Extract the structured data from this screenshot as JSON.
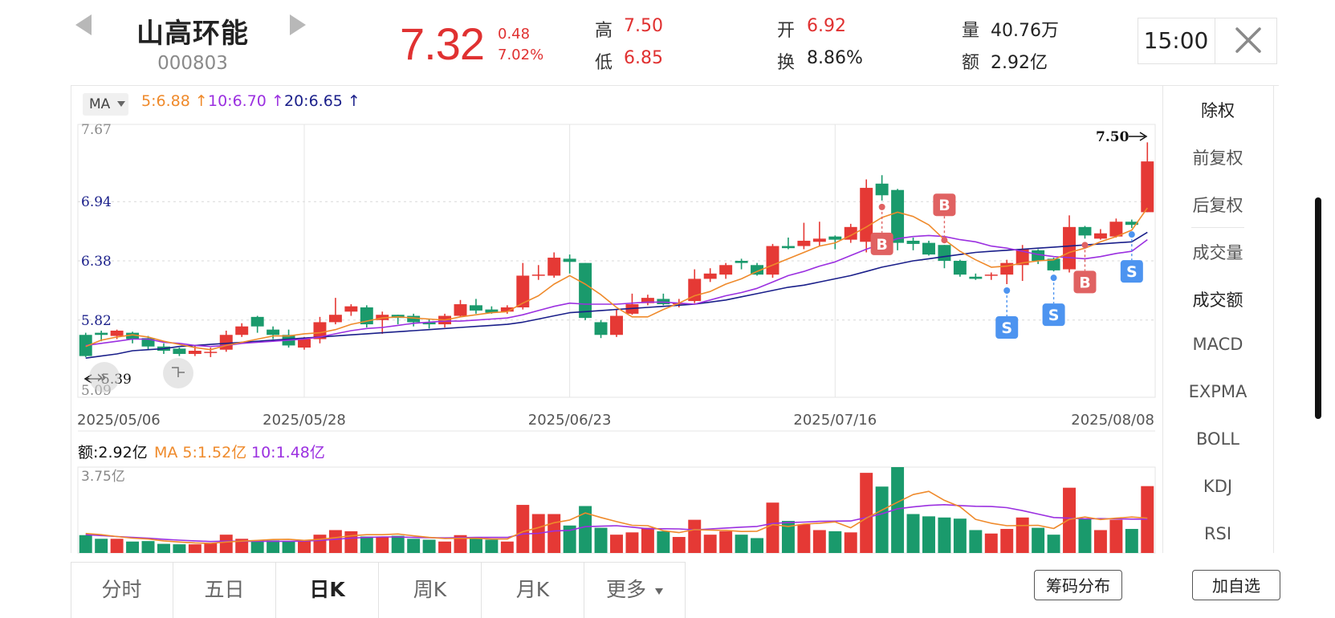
{
  "header": {
    "name": "山高环能",
    "code": "000803",
    "price": "7.32",
    "change_abs": "0.48",
    "change_pct": "7.02%",
    "stats": {
      "high_label": "高",
      "high": "7.50",
      "low_label": "低",
      "low": "6.85",
      "open_label": "开",
      "open": "6.92",
      "turnover_label": "换",
      "turnover": "8.86%",
      "volume_label": "量",
      "volume": "40.76万",
      "amount_label": "额",
      "amount": "2.92亿"
    },
    "time": "15:00"
  },
  "ma_bar": {
    "select_label": "MA",
    "ma5": "5:6.88",
    "ma10": "10:6.70",
    "ma20": "20:6.65"
  },
  "colors": {
    "up": "#e53935",
    "down": "#1a9a6c",
    "ma5": "#ef8a2b",
    "ma10": "#9b30e0",
    "ma20": "#1a1f8a",
    "buy": "#e06262",
    "sell": "#4d94f0"
  },
  "chart_data": [
    {
      "type": "candlestick",
      "y_ticks": [
        "7.67",
        "6.94",
        "6.38",
        "5.82",
        "5.09"
      ],
      "ylim": [
        5.09,
        7.67
      ],
      "x_labels": [
        "2025/05/06",
        "2025/05/28",
        "2025/06/23",
        "2025/07/16",
        "2025/08/08"
      ],
      "x_label_index": [
        0,
        14,
        31,
        48,
        67
      ],
      "high_marker": "7.50",
      "low_marker": "5.39",
      "candles": [
        [
          5.68,
          5.48,
          5.7,
          5.47
        ],
        [
          5.7,
          5.68,
          5.72,
          5.62
        ],
        [
          5.67,
          5.72,
          5.73,
          5.64
        ],
        [
          5.7,
          5.64,
          5.71,
          5.6
        ],
        [
          5.65,
          5.57,
          5.67,
          5.54
        ],
        [
          5.57,
          5.53,
          5.6,
          5.5
        ],
        [
          5.55,
          5.5,
          5.56,
          5.48
        ],
        [
          5.5,
          5.53,
          5.58,
          5.48
        ],
        [
          5.51,
          5.52,
          5.56,
          5.47
        ],
        [
          5.54,
          5.68,
          5.72,
          5.52
        ],
        [
          5.68,
          5.76,
          5.79,
          5.66
        ],
        [
          5.85,
          5.76,
          5.86,
          5.7
        ],
        [
          5.73,
          5.68,
          5.76,
          5.64
        ],
        [
          5.68,
          5.58,
          5.73,
          5.56
        ],
        [
          5.56,
          5.64,
          5.66,
          5.54
        ],
        [
          5.64,
          5.8,
          5.85,
          5.6
        ],
        [
          5.8,
          5.87,
          6.03,
          5.78
        ],
        [
          5.9,
          5.95,
          5.97,
          5.86
        ],
        [
          5.94,
          5.78,
          5.96,
          5.75
        ],
        [
          5.82,
          5.87,
          5.9,
          5.69
        ],
        [
          5.87,
          5.84,
          5.87,
          5.78
        ],
        [
          5.86,
          5.8,
          5.88,
          5.76
        ],
        [
          5.8,
          5.78,
          5.83,
          5.74
        ],
        [
          5.78,
          5.86,
          5.88,
          5.75
        ],
        [
          5.86,
          5.97,
          6.01,
          5.85
        ],
        [
          5.96,
          5.91,
          6.02,
          5.88
        ],
        [
          5.92,
          5.89,
          5.95,
          5.88
        ],
        [
          5.9,
          5.94,
          5.96,
          5.88
        ],
        [
          5.94,
          6.24,
          6.36,
          5.92
        ],
        [
          6.24,
          6.25,
          6.34,
          6.2
        ],
        [
          6.24,
          6.41,
          6.46,
          6.22
        ],
        [
          6.4,
          6.37,
          6.44,
          6.26
        ],
        [
          6.36,
          5.84,
          6.36,
          5.82
        ],
        [
          5.8,
          5.68,
          5.82,
          5.65
        ],
        [
          5.68,
          5.86,
          5.92,
          5.66
        ],
        [
          5.88,
          5.97,
          6.07,
          5.87
        ],
        [
          5.98,
          6.03,
          6.06,
          5.96
        ],
        [
          6.02,
          5.97,
          6.07,
          5.96
        ],
        [
          5.97,
          5.98,
          6.02,
          5.94
        ],
        [
          6.0,
          6.21,
          6.3,
          5.98
        ],
        [
          6.21,
          6.26,
          6.31,
          6.18
        ],
        [
          6.25,
          6.34,
          6.36,
          6.21
        ],
        [
          6.38,
          6.36,
          6.4,
          6.3
        ],
        [
          6.34,
          6.25,
          6.36,
          6.24
        ],
        [
          6.25,
          6.52,
          6.54,
          6.22
        ],
        [
          6.52,
          6.5,
          6.6,
          6.49
        ],
        [
          6.52,
          6.57,
          6.74,
          6.49
        ],
        [
          6.56,
          6.59,
          6.75,
          6.52
        ],
        [
          6.61,
          6.58,
          6.62,
          6.49
        ],
        [
          6.58,
          6.7,
          6.73,
          6.55
        ],
        [
          6.56,
          7.07,
          7.15,
          6.46
        ],
        [
          7.11,
          7.0,
          7.19,
          6.95
        ],
        [
          7.05,
          6.55,
          7.06,
          6.48
        ],
        [
          6.57,
          6.54,
          6.6,
          6.48
        ],
        [
          6.55,
          6.44,
          6.57,
          6.43
        ],
        [
          6.53,
          6.38,
          6.53,
          6.31
        ],
        [
          6.38,
          6.25,
          6.39,
          6.23
        ],
        [
          6.23,
          6.21,
          6.26,
          6.2
        ],
        [
          6.24,
          6.25,
          6.27,
          6.2
        ],
        [
          6.25,
          6.36,
          6.39,
          6.16
        ],
        [
          6.34,
          6.49,
          6.53,
          6.19
        ],
        [
          6.48,
          6.38,
          6.49,
          6.35
        ],
        [
          6.4,
          6.29,
          6.41,
          6.28
        ],
        [
          6.3,
          6.7,
          6.81,
          6.27
        ],
        [
          6.7,
          6.62,
          6.71,
          6.59
        ],
        [
          6.59,
          6.64,
          6.68,
          6.58
        ],
        [
          6.61,
          6.75,
          6.78,
          6.6
        ],
        [
          6.75,
          6.72,
          6.77,
          6.69
        ],
        [
          6.84,
          7.32,
          7.5,
          6.84
        ]
      ],
      "ma5": [
        5.57,
        5.63,
        5.66,
        5.68,
        5.66,
        5.62,
        5.59,
        5.56,
        5.54,
        5.58,
        5.61,
        5.64,
        5.67,
        5.67,
        5.69,
        5.7,
        5.73,
        5.78,
        5.81,
        5.84,
        5.85,
        5.84,
        5.83,
        5.82,
        5.85,
        5.87,
        5.89,
        5.9,
        5.98,
        6.05,
        6.16,
        6.24,
        6.16,
        6.06,
        5.94,
        5.85,
        5.85,
        5.92,
        5.98,
        6.05,
        6.09,
        6.16,
        6.21,
        6.28,
        6.34,
        6.4,
        6.46,
        6.52,
        6.55,
        6.62,
        6.7,
        6.79,
        6.84,
        6.8,
        6.72,
        6.58,
        6.47,
        6.39,
        6.32,
        6.33,
        6.36,
        6.38,
        6.39,
        6.46,
        6.5,
        6.56,
        6.61,
        6.67,
        6.88
      ],
      "ma10": [
        5.58,
        5.6,
        5.62,
        5.64,
        5.64,
        5.61,
        5.6,
        5.58,
        5.57,
        5.58,
        5.6,
        5.61,
        5.62,
        5.63,
        5.64,
        5.66,
        5.69,
        5.72,
        5.74,
        5.75,
        5.77,
        5.79,
        5.8,
        5.81,
        5.81,
        5.82,
        5.83,
        5.84,
        5.87,
        5.91,
        5.95,
        5.98,
        5.97,
        5.97,
        5.97,
        5.98,
        5.99,
        5.99,
        5.98,
        5.97,
        6.01,
        6.05,
        6.08,
        6.12,
        6.18,
        6.24,
        6.28,
        6.33,
        6.37,
        6.43,
        6.49,
        6.54,
        6.59,
        6.61,
        6.62,
        6.61,
        6.58,
        6.56,
        6.52,
        6.5,
        6.47,
        6.44,
        6.42,
        6.41,
        6.4,
        6.42,
        6.45,
        6.47,
        6.58
      ],
      "ma20": [
        5.46,
        5.48,
        5.5,
        5.53,
        5.54,
        5.55,
        5.57,
        5.58,
        5.59,
        5.6,
        5.61,
        5.62,
        5.63,
        5.64,
        5.65,
        5.66,
        5.67,
        5.68,
        5.69,
        5.7,
        5.71,
        5.72,
        5.73,
        5.74,
        5.75,
        5.76,
        5.77,
        5.78,
        5.8,
        5.83,
        5.86,
        5.89,
        5.9,
        5.91,
        5.92,
        5.93,
        5.94,
        5.95,
        5.96,
        5.97,
        5.99,
        6.01,
        6.04,
        6.07,
        6.1,
        6.13,
        6.15,
        6.18,
        6.21,
        6.24,
        6.28,
        6.32,
        6.35,
        6.38,
        6.4,
        6.42,
        6.44,
        6.46,
        6.47,
        6.48,
        6.49,
        6.5,
        6.51,
        6.52,
        6.53,
        6.54,
        6.55,
        6.56,
        6.65
      ],
      "signals": [
        {
          "index": 51,
          "label": "B",
          "kind": "buy",
          "pos": "below"
        },
        {
          "index": 55,
          "label": "B",
          "kind": "buy",
          "pos": "above"
        },
        {
          "index": 59,
          "label": "S",
          "kind": "sell",
          "pos": "below"
        },
        {
          "index": 62,
          "label": "S",
          "kind": "sell",
          "pos": "below"
        },
        {
          "index": 64,
          "label": "B",
          "kind": "buy",
          "pos": "below"
        },
        {
          "index": 67,
          "label": "S",
          "kind": "sell",
          "pos": "below"
        }
      ]
    },
    {
      "type": "bar",
      "title": "额:2.92亿",
      "ma5_label": "MA 5:1.52亿",
      "ma10_label": "10:1.48亿",
      "y_tick": "3.75亿",
      "ylim": [
        0,
        3.75
      ],
      "values": [
        0.78,
        0.62,
        0.62,
        0.5,
        0.52,
        0.4,
        0.38,
        0.38,
        0.42,
        0.8,
        0.62,
        0.55,
        0.55,
        0.5,
        0.52,
        0.8,
        1.0,
        0.95,
        0.72,
        0.72,
        0.75,
        0.62,
        0.58,
        0.5,
        0.78,
        0.68,
        0.58,
        0.5,
        2.1,
        1.7,
        1.7,
        1.2,
        2.05,
        1.1,
        0.8,
        0.9,
        1.1,
        0.95,
        0.7,
        1.45,
        0.8,
        0.95,
        0.8,
        0.65,
        2.2,
        1.4,
        1.25,
        1.0,
        0.95,
        0.9,
        3.5,
        2.9,
        3.75,
        1.7,
        1.6,
        1.55,
        1.5,
        1.0,
        0.85,
        1.05,
        1.55,
        1.1,
        0.8,
        2.85,
        1.5,
        1.0,
        1.45,
        1.05,
        2.92
      ],
      "ma5": [
        0.85,
        0.8,
        0.72,
        0.65,
        0.61,
        0.53,
        0.48,
        0.44,
        0.42,
        0.48,
        0.52,
        0.55,
        0.59,
        0.6,
        0.55,
        0.6,
        0.67,
        0.75,
        0.8,
        0.8,
        0.83,
        0.75,
        0.68,
        0.63,
        0.64,
        0.64,
        0.61,
        0.61,
        0.93,
        1.11,
        1.32,
        1.44,
        1.75,
        1.55,
        1.37,
        1.21,
        1.19,
        0.97,
        0.89,
        1.02,
        1.0,
        0.99,
        0.94,
        0.95,
        1.24,
        1.16,
        1.26,
        1.3,
        1.36,
        1.1,
        1.52,
        1.87,
        2.22,
        2.55,
        2.69,
        2.3,
        2.02,
        1.47,
        1.3,
        1.19,
        1.2,
        1.21,
        1.07,
        1.47,
        1.57,
        1.46,
        1.52,
        1.57,
        1.52
      ],
      "ma10": [
        0.8,
        0.76,
        0.72,
        0.68,
        0.65,
        0.6,
        0.56,
        0.53,
        0.5,
        0.52,
        0.51,
        0.51,
        0.51,
        0.51,
        0.52,
        0.55,
        0.6,
        0.65,
        0.68,
        0.7,
        0.7,
        0.68,
        0.67,
        0.66,
        0.67,
        0.68,
        0.68,
        0.68,
        0.83,
        0.86,
        0.96,
        0.99,
        1.15,
        1.17,
        1.19,
        1.13,
        1.06,
        1.06,
        1.05,
        1.01,
        1.05,
        1.09,
        1.13,
        1.16,
        1.29,
        1.33,
        1.35,
        1.38,
        1.39,
        1.4,
        1.55,
        1.71,
        1.93,
        2.01,
        2.08,
        2.11,
        2.07,
        2.04,
        2.03,
        1.98,
        1.85,
        1.7,
        1.55,
        1.52,
        1.49,
        1.5,
        1.49,
        1.48,
        1.48
      ]
    }
  ],
  "side_panel": [
    "除权",
    "前复权",
    "后复权",
    "成交量",
    "成交额",
    "MACD",
    "EXPMA",
    "BOLL",
    "KDJ",
    "RSI"
  ],
  "tabs": [
    "分时",
    "五日",
    "日K",
    "周K",
    "月K",
    "更多"
  ],
  "buttons": {
    "chip": "筹码分布",
    "watchlist": "加自选"
  }
}
